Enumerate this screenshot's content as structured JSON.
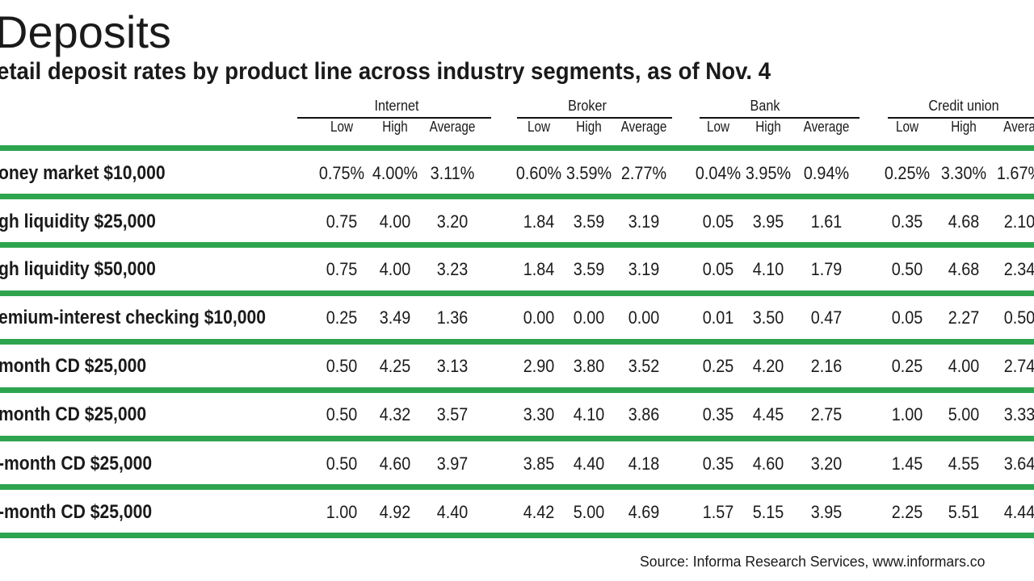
{
  "title": "Deposits",
  "subtitle": "etail deposit rates by product line across industry segments, as of Nov. 4",
  "source": "Source: Informa Research Services, www.informars.co",
  "colors": {
    "accent_bar": "#2ea44f",
    "text": "#1a1a1a"
  },
  "chart_data": {
    "type": "table",
    "segments": [
      "Internet",
      "Broker",
      "Bank",
      "Credit union"
    ],
    "sub_headers": {
      "Internet": [
        "Low",
        "High",
        "Average"
      ],
      "Broker": [
        "Low",
        "High",
        "Average"
      ],
      "Bank": [
        "Low",
        "High",
        "Average"
      ],
      "Credit union": [
        "Low",
        "High",
        "Avera"
      ]
    },
    "rows": [
      {
        "label": "oney market $10,000",
        "values": [
          "0.75%",
          "4.00%",
          "3.11%",
          "0.60%",
          "3.59%",
          "2.77%",
          "0.04%",
          "3.95%",
          "0.94%",
          "0.25%",
          "3.30%",
          "1.67%"
        ]
      },
      {
        "label": "gh liquidity $25,000",
        "values": [
          "0.75",
          "4.00",
          "3.20",
          "1.84",
          "3.59",
          "3.19",
          "0.05",
          "3.95",
          "1.61",
          "0.35",
          "4.68",
          "2.10"
        ]
      },
      {
        "label": "gh liquidity $50,000",
        "values": [
          "0.75",
          "4.00",
          "3.23",
          "1.84",
          "3.59",
          "3.19",
          "0.05",
          "4.10",
          "1.79",
          "0.50",
          "4.68",
          "2.34"
        ]
      },
      {
        "label": "emium-interest checking $10,000",
        "values": [
          "0.25",
          "3.49",
          "1.36",
          "0.00",
          "0.00",
          "0.00",
          "0.01",
          "3.50",
          "0.47",
          "0.05",
          "2.27",
          "0.50"
        ]
      },
      {
        "label": "month CD $25,000",
        "values": [
          "0.50",
          "4.25",
          "3.13",
          "2.90",
          "3.80",
          "3.52",
          "0.25",
          "4.20",
          "2.16",
          "0.25",
          "4.00",
          "2.74"
        ]
      },
      {
        "label": "month CD $25,000",
        "values": [
          "0.50",
          "4.32",
          "3.57",
          "3.30",
          "4.10",
          "3.86",
          "0.35",
          "4.45",
          "2.75",
          "1.00",
          "5.00",
          "3.33"
        ]
      },
      {
        "label": "-month CD $25,000",
        "values": [
          "0.50",
          "4.60",
          "3.97",
          "3.85",
          "4.40",
          "4.18",
          "0.35",
          "4.60",
          "3.20",
          "1.45",
          "4.55",
          "3.64"
        ]
      },
      {
        "label": "-month CD $25,000",
        "values": [
          "1.00",
          "4.92",
          "4.40",
          "4.42",
          "5.00",
          "4.69",
          "1.57",
          "5.15",
          "3.95",
          "2.25",
          "5.51",
          "4.44"
        ]
      }
    ]
  }
}
